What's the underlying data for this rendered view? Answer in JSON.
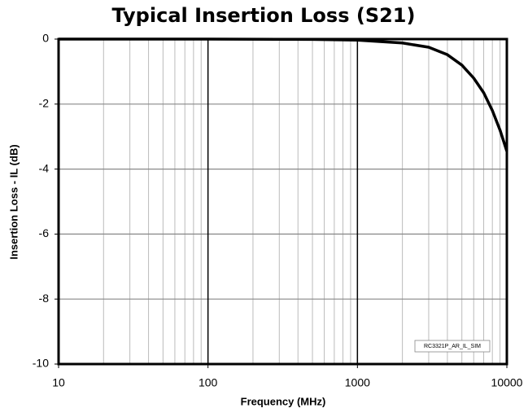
{
  "chart_data": {
    "type": "line",
    "title": "Typical Insertion Loss (S21)",
    "xlabel": "Frequency (MHz)",
    "ylabel": "Insertion Loss - IL (dB)",
    "annotation": "RC3321P_AR_IL_SIM",
    "xscale": "log",
    "grid": true,
    "xlim": [
      10,
      10000
    ],
    "xticks": [
      10,
      100,
      1000,
      10000
    ],
    "ylim": [
      -10,
      0
    ],
    "yticks": [
      -10,
      -8,
      -6,
      -4,
      -2,
      0
    ],
    "x": [
      10,
      100,
      500,
      1000,
      2000,
      3000,
      4000,
      5000,
      6000,
      7000,
      8000,
      9000,
      10000
    ],
    "series": [
      {
        "color": "#000000",
        "values": [
          0,
          0,
          -0.01,
          -0.03,
          -0.12,
          -0.25,
          -0.48,
          -0.8,
          -1.2,
          -1.65,
          -2.2,
          -2.8,
          -3.45
        ]
      }
    ]
  }
}
